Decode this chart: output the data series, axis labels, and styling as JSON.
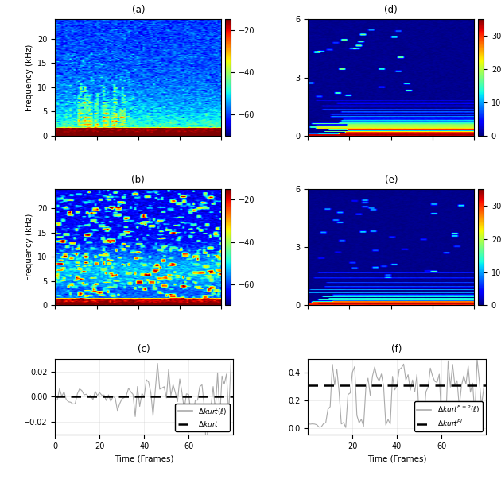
{
  "fig_width": 6.3,
  "fig_height": 6.08,
  "dpi": 100,
  "panel_labels": [
    "(a)",
    "(b)",
    "(c)",
    "(d)",
    "(e)",
    "(f)"
  ],
  "spectrogram_ab": {
    "freq_max": 24,
    "freq_ticks": [
      0,
      5,
      10,
      15,
      20
    ],
    "cmap": "jet",
    "clim": [
      -70,
      -15
    ],
    "colorbar_ticks": [
      -20,
      -40,
      -60
    ],
    "ylabel": "Frequency (kHz)"
  },
  "spectrogram_de": {
    "freq_max": 6,
    "freq_ticks": [
      0,
      3,
      6
    ],
    "cmap": "jet",
    "clim": [
      0,
      35
    ],
    "colorbar_ticks": [
      0,
      10,
      20,
      30
    ],
    "ylabel": ""
  },
  "plot_c": {
    "xlabel": "Time (Frames)",
    "yticks": [
      -0.02,
      0,
      0.02
    ],
    "xticks": [
      0,
      20,
      40,
      60
    ],
    "ylim": [
      -0.03,
      0.03
    ],
    "xlim": [
      0,
      80
    ],
    "dashed_value": 0.0,
    "line_color": "#aaaaaa",
    "dash_color": "black"
  },
  "plot_f": {
    "xlabel": "Time (Frames)",
    "yticks": [
      0.0,
      0.2,
      0.4
    ],
    "xticks": [
      20,
      40,
      60
    ],
    "ylim": [
      -0.05,
      0.5
    ],
    "xlim": [
      0,
      80
    ],
    "dashed_value": 0.31,
    "line_color": "#aaaaaa",
    "dash_color": "black"
  },
  "background_color": "white"
}
